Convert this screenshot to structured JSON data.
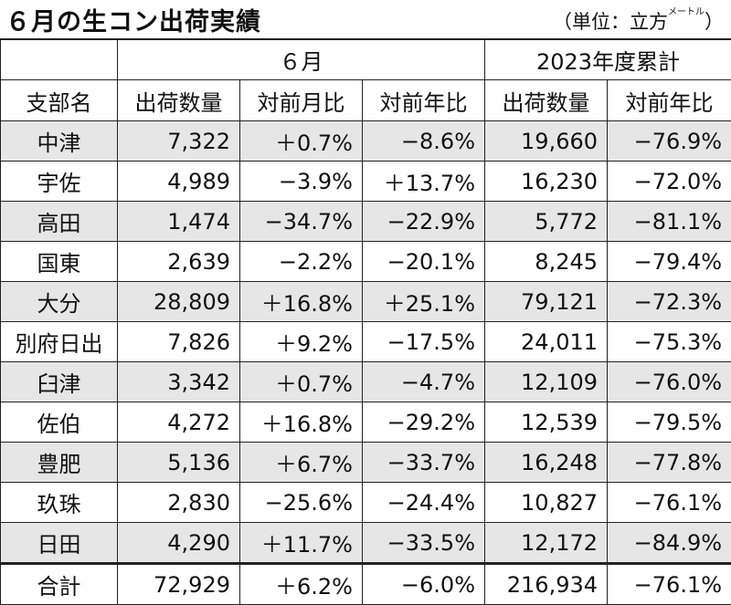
{
  "title": "６月の生コン出荷実績",
  "unit": {
    "prefix": "（単位：立方",
    "small": "メートル",
    "suffix": "）"
  },
  "group_headers": {
    "june": "６月",
    "ytd": "2023年度累計"
  },
  "columns": [
    "支部名",
    "出荷数量",
    "対前月比",
    "対前年比",
    "出荷数量",
    "対前年比"
  ],
  "rows": [
    [
      "中津",
      "7,322",
      "＋0.7%",
      "−8.6%",
      "19,660",
      "−76.9%"
    ],
    [
      "宇佐",
      "4,989",
      "−3.9%",
      "＋13.7%",
      "16,230",
      "−72.0%"
    ],
    [
      "高田",
      "1,474",
      "−34.7%",
      "−22.9%",
      "5,772",
      "−81.1%"
    ],
    [
      "国東",
      "2,639",
      "−2.2%",
      "−20.1%",
      "8,245",
      "−79.4%"
    ],
    [
      "大分",
      "28,809",
      "＋16.8%",
      "＋25.1%",
      "79,121",
      "−72.3%"
    ],
    [
      "別府日出",
      "7,826",
      "＋9.2%",
      "−17.5%",
      "24,011",
      "−75.3%"
    ],
    [
      "臼津",
      "3,342",
      "＋0.7%",
      "−4.7%",
      "12,109",
      "−76.0%"
    ],
    [
      "佐伯",
      "4,272",
      "＋16.8%",
      "−29.2%",
      "12,539",
      "−79.5%"
    ],
    [
      "豊肥",
      "5,136",
      "＋6.7%",
      "−33.7%",
      "16,248",
      "−77.8%"
    ],
    [
      "玖珠",
      "2,830",
      "−25.6%",
      "−24.4%",
      "10,827",
      "−76.1%"
    ],
    [
      "日田",
      "4,290",
      "＋11.7%",
      "−33.5%",
      "12,172",
      "−84.9%"
    ]
  ],
  "total": [
    "合計",
    "72,929",
    "＋6.2%",
    "−6.0%",
    "216,934",
    "−76.1%"
  ]
}
